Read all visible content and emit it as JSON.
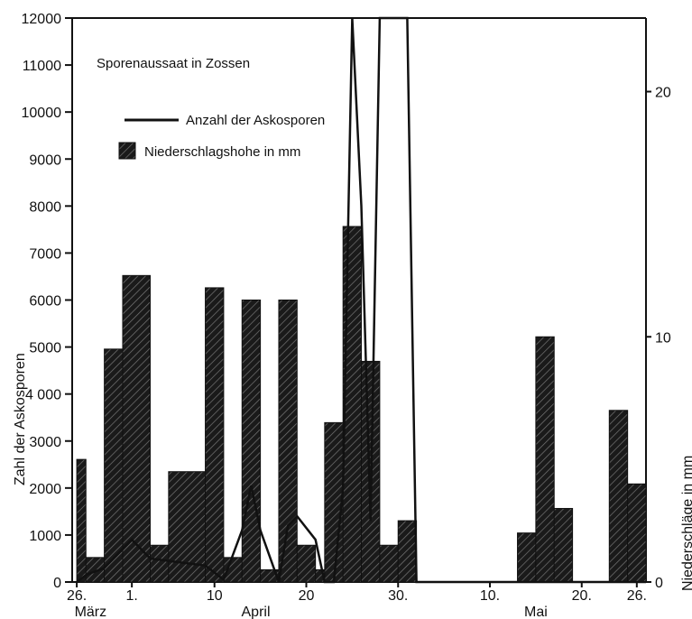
{
  "chart_data": {
    "type": "bar+line",
    "title": "Sporenaussaat in Zossen",
    "ylabel_left": "Zahl der Askosporen",
    "ylabel_right": "Niederschläge in mm",
    "ylim_left": [
      0,
      12000
    ],
    "ylim_right": [
      0,
      23
    ],
    "left_ticks": [
      0,
      1000,
      2000,
      3000,
      4000,
      5000,
      6000,
      7000,
      8000,
      9000,
      10000,
      11000,
      12000
    ],
    "left_tick_labels": [
      "0",
      "1000",
      "2000",
      "3000",
      "4 000",
      "5000",
      "6000",
      "7000",
      "8000",
      "9000",
      "10000",
      "11000",
      "12000"
    ],
    "right_ticks": [
      0,
      10,
      20
    ],
    "right_tick_labels": [
      "0",
      "10",
      "20"
    ],
    "xlim": [
      -0.5,
      62
    ],
    "x_ticks": [
      0,
      6,
      15,
      25,
      35,
      45,
      55,
      61
    ],
    "x_tick_labels": [
      "26.",
      "1.",
      "10",
      "20",
      "30.",
      "10.",
      "20.",
      "26."
    ],
    "months": [
      {
        "label": "März",
        "at": 1.5
      },
      {
        "label": "April",
        "at": 19.5
      },
      {
        "label": "Mai",
        "at": 50
      }
    ],
    "legend": [
      {
        "label": "Anzahl der Askosporen",
        "kind": "line"
      },
      {
        "label": "Niederschlagshohe in mm",
        "kind": "bar"
      }
    ],
    "series": [
      {
        "name": "Niederschlagshohe in mm",
        "kind": "bar",
        "axis": "right",
        "bars": [
          {
            "start": 0,
            "end": 1,
            "value": 5
          },
          {
            "start": 1,
            "end": 3,
            "value": 1
          },
          {
            "start": 3,
            "end": 5,
            "value": 9.5
          },
          {
            "start": 5,
            "end": 8,
            "value": 12.5
          },
          {
            "start": 8,
            "end": 10,
            "value": 1.5
          },
          {
            "start": 10,
            "end": 14,
            "value": 4.5
          },
          {
            "start": 14,
            "end": 16,
            "value": 12
          },
          {
            "start": 16,
            "end": 18,
            "value": 1
          },
          {
            "start": 18,
            "end": 20,
            "value": 11.5
          },
          {
            "start": 20,
            "end": 22,
            "value": 0.5
          },
          {
            "start": 22,
            "end": 24,
            "value": 11.5
          },
          {
            "start": 24,
            "end": 26,
            "value": 1.5
          },
          {
            "start": 26,
            "end": 27,
            "value": 0.5
          },
          {
            "start": 27,
            "end": 29,
            "value": 6.5
          },
          {
            "start": 29,
            "end": 31,
            "value": 14.5
          },
          {
            "start": 31,
            "end": 33,
            "value": 9
          },
          {
            "start": 33,
            "end": 35,
            "value": 1.5
          },
          {
            "start": 35,
            "end": 37,
            "value": 2.5
          },
          {
            "start": 48,
            "end": 50,
            "value": 2
          },
          {
            "start": 50,
            "end": 52,
            "value": 10
          },
          {
            "start": 52,
            "end": 54,
            "value": 3
          },
          {
            "start": 58,
            "end": 60,
            "value": 7
          },
          {
            "start": 60,
            "end": 62,
            "value": 4
          }
        ]
      },
      {
        "name": "Anzahl der Askosporen",
        "kind": "line",
        "axis": "left",
        "x": [
          0,
          1,
          3,
          6,
          8,
          10,
          14,
          16,
          18,
          19,
          20,
          22,
          23,
          24,
          26,
          27,
          28,
          29,
          30,
          31,
          32,
          33,
          34,
          35,
          36,
          37,
          38,
          40,
          62
        ],
        "y": [
          0,
          150,
          300,
          900,
          500,
          450,
          350,
          50,
          1100,
          2050,
          1100,
          0,
          1200,
          1400,
          900,
          0,
          0,
          2000,
          12000,
          8000,
          1300,
          12000,
          12000,
          12000,
          12000,
          0,
          0,
          0,
          0
        ]
      }
    ]
  }
}
